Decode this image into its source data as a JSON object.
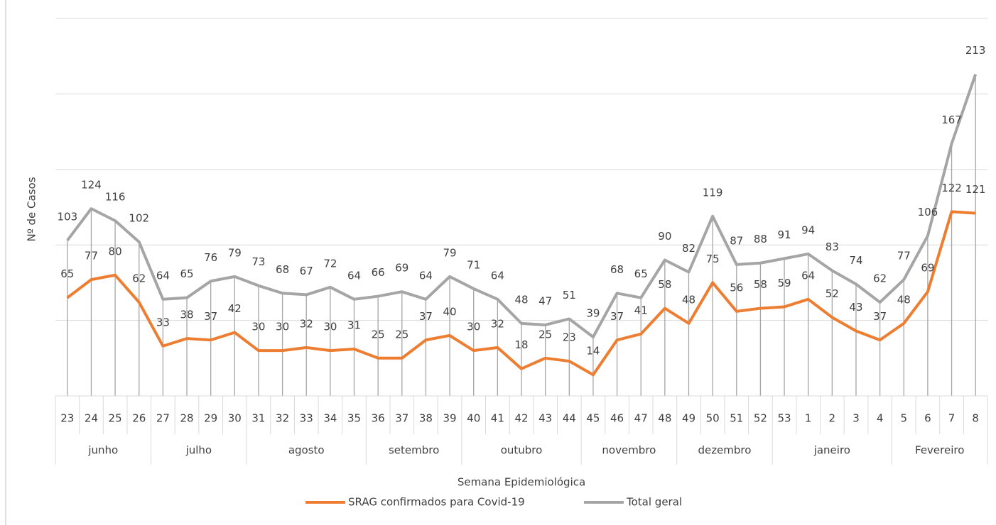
{
  "chart_data": {
    "type": "line",
    "y_axis_label": "Nº de Casos",
    "x_axis_label": "Semana Epidemiológica",
    "category_groups": [
      {
        "label": "junho",
        "categories": [
          "23",
          "24",
          "25",
          "26"
        ]
      },
      {
        "label": "julho",
        "categories": [
          "27",
          "28",
          "29",
          "30"
        ]
      },
      {
        "label": "agosto",
        "categories": [
          "31",
          "32",
          "33",
          "34",
          "35"
        ]
      },
      {
        "label": "setembro",
        "categories": [
          "36",
          "37",
          "38",
          "39"
        ]
      },
      {
        "label": "outubro",
        "categories": [
          "40",
          "41",
          "42",
          "43",
          "44"
        ]
      },
      {
        "label": "novembro",
        "categories": [
          "45",
          "46",
          "47",
          "48"
        ]
      },
      {
        "label": "dezembro",
        "categories": [
          "49",
          "50",
          "51",
          "52"
        ]
      },
      {
        "label": "janeiro",
        "categories": [
          "53",
          "1",
          "2",
          "3",
          "4"
        ]
      },
      {
        "label": "Fevereiro",
        "categories": [
          "5",
          "6",
          "7",
          "8"
        ]
      }
    ],
    "series": [
      {
        "name": "SRAG confirmados para Covid-19",
        "color": "#ed7d31",
        "values": [
          65,
          77,
          80,
          62,
          33,
          38,
          37,
          42,
          30,
          30,
          32,
          30,
          31,
          25,
          25,
          37,
          40,
          30,
          32,
          18,
          25,
          23,
          14,
          37,
          41,
          58,
          48,
          75,
          56,
          58,
          59,
          64,
          52,
          43,
          37,
          48,
          69,
          122,
          121
        ]
      },
      {
        "name": "Total geral",
        "color": "#a5a5a5",
        "values": [
          103,
          124,
          116,
          102,
          64,
          65,
          76,
          79,
          73,
          68,
          67,
          72,
          64,
          66,
          69,
          64,
          79,
          71,
          64,
          48,
          47,
          51,
          39,
          68,
          65,
          90,
          82,
          119,
          87,
          88,
          91,
          94,
          83,
          74,
          62,
          77,
          106,
          167,
          213
        ]
      }
    ],
    "ylim": [
      0,
      250
    ],
    "yticks": [
      0,
      50,
      100,
      150,
      200,
      250
    ],
    "grid": true,
    "legend": "bottom"
  }
}
